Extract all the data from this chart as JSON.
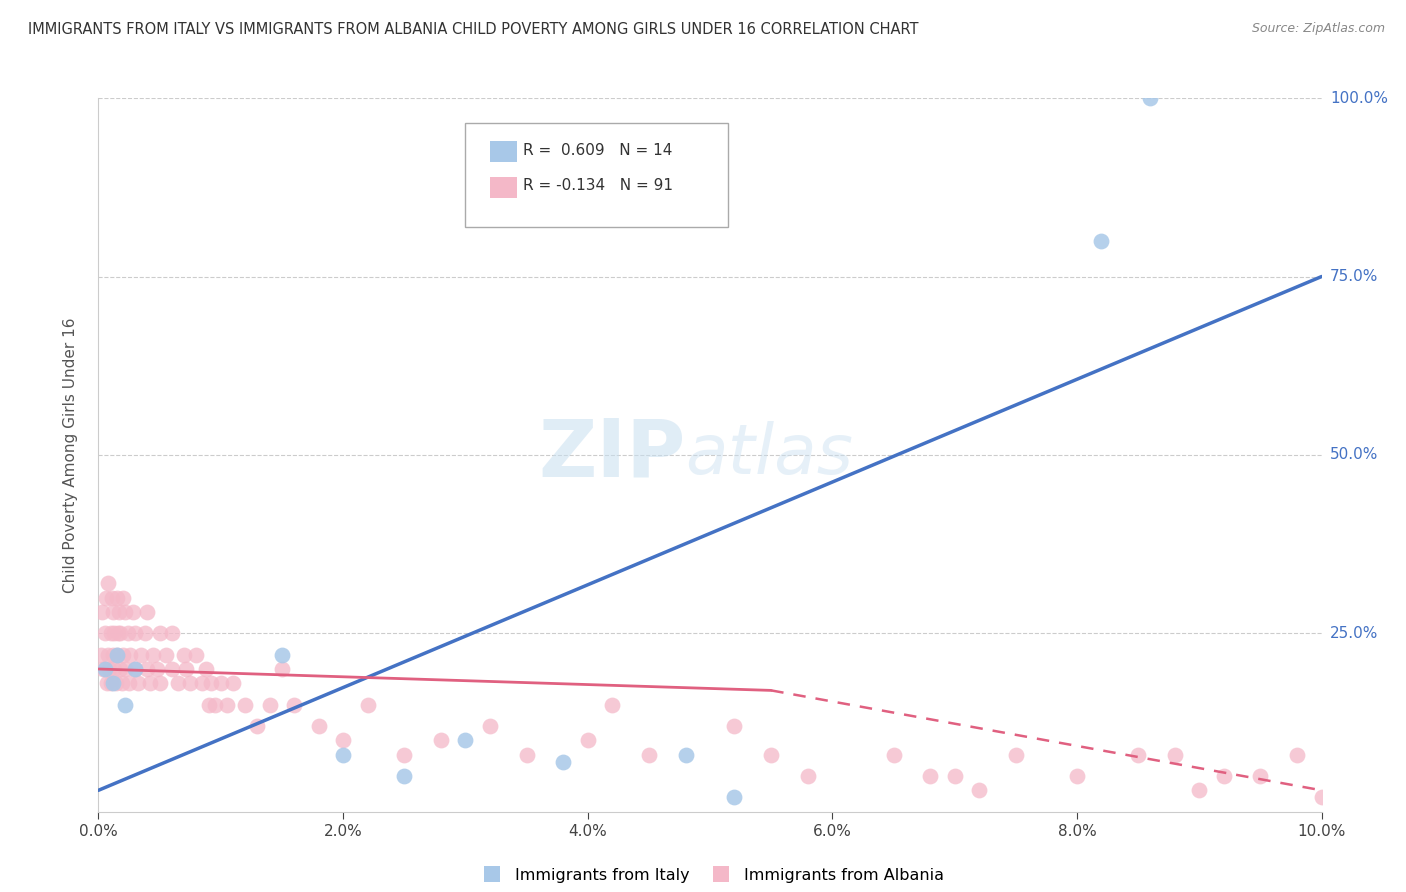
{
  "title": "IMMIGRANTS FROM ITALY VS IMMIGRANTS FROM ALBANIA CHILD POVERTY AMONG GIRLS UNDER 16 CORRELATION CHART",
  "source": "Source: ZipAtlas.com",
  "ylabel": "Child Poverty Among Girls Under 16",
  "italy_R": 0.609,
  "italy_N": 14,
  "albania_R": -0.134,
  "albania_N": 91,
  "italy_color": "#a8c8e8",
  "albania_color": "#f4b8c8",
  "italy_line_color": "#4472c4",
  "albania_line_color": "#e06080",
  "watermark_zip": "ZIP",
  "watermark_atlas": "atlas",
  "xlim": [
    0.0,
    10.0
  ],
  "ylim": [
    0.0,
    100.0
  ],
  "xticks": [
    0.0,
    2.0,
    4.0,
    6.0,
    8.0,
    10.0
  ],
  "yticks": [
    0.0,
    25.0,
    50.0,
    75.0,
    100.0
  ],
  "xtick_labels": [
    "0.0%",
    "2.0%",
    "4.0%",
    "6.0%",
    "8.0%",
    "10.0%"
  ],
  "ytick_labels": [
    "",
    "25.0%",
    "50.0%",
    "75.0%",
    "100.0%"
  ],
  "italy_scatter_x": [
    0.05,
    0.12,
    0.15,
    0.22,
    0.3,
    1.5,
    2.0,
    2.5,
    3.0,
    3.8,
    4.8,
    5.2,
    8.2,
    8.6
  ],
  "italy_scatter_y": [
    20,
    18,
    22,
    15,
    20,
    22,
    8,
    5,
    10,
    7,
    8,
    2,
    80,
    100
  ],
  "albania_scatter_x": [
    0.02,
    0.03,
    0.04,
    0.05,
    0.06,
    0.07,
    0.08,
    0.08,
    0.09,
    0.1,
    0.1,
    0.11,
    0.12,
    0.12,
    0.13,
    0.13,
    0.14,
    0.15,
    0.15,
    0.16,
    0.17,
    0.18,
    0.18,
    0.19,
    0.2,
    0.2,
    0.22,
    0.22,
    0.24,
    0.25,
    0.26,
    0.28,
    0.3,
    0.3,
    0.32,
    0.35,
    0.38,
    0.4,
    0.4,
    0.42,
    0.45,
    0.48,
    0.5,
    0.5,
    0.55,
    0.6,
    0.6,
    0.65,
    0.7,
    0.72,
    0.75,
    0.8,
    0.85,
    0.88,
    0.9,
    0.92,
    0.95,
    1.0,
    1.05,
    1.1,
    1.2,
    1.3,
    1.4,
    1.5,
    1.6,
    1.8,
    2.0,
    2.2,
    2.5,
    2.8,
    3.2,
    3.5,
    4.0,
    4.2,
    4.5,
    5.2,
    5.5,
    5.8,
    6.5,
    7.0,
    7.5,
    8.0,
    8.5,
    9.0,
    9.5,
    10.0,
    9.8,
    9.2,
    8.8,
    7.2,
    6.8
  ],
  "albania_scatter_y": [
    22,
    28,
    20,
    25,
    30,
    18,
    22,
    32,
    20,
    25,
    18,
    30,
    22,
    28,
    20,
    25,
    18,
    30,
    22,
    25,
    28,
    20,
    25,
    18,
    22,
    30,
    28,
    20,
    25,
    18,
    22,
    28,
    20,
    25,
    18,
    22,
    25,
    20,
    28,
    18,
    22,
    20,
    25,
    18,
    22,
    20,
    25,
    18,
    22,
    20,
    18,
    22,
    18,
    20,
    15,
    18,
    15,
    18,
    15,
    18,
    15,
    12,
    15,
    20,
    15,
    12,
    10,
    15,
    8,
    10,
    12,
    8,
    10,
    15,
    8,
    12,
    8,
    5,
    8,
    5,
    8,
    5,
    8,
    3,
    5,
    2,
    8,
    5,
    8,
    3,
    5
  ],
  "legend_label_italy": "Immigrants from Italy",
  "legend_label_albania": "Immigrants from Albania",
  "background_color": "#ffffff",
  "grid_color": "#cccccc",
  "italy_trend_x0": 0.0,
  "italy_trend_y0": 3.0,
  "italy_trend_x1": 10.0,
  "italy_trend_y1": 75.0,
  "albania_trend_solid_x0": 0.0,
  "albania_trend_solid_y0": 20.0,
  "albania_trend_solid_x1": 5.5,
  "albania_trend_solid_y1": 17.0,
  "albania_trend_dash_x0": 5.5,
  "albania_trend_dash_y0": 17.0,
  "albania_trend_dash_x1": 10.0,
  "albania_trend_dash_y1": 3.0
}
